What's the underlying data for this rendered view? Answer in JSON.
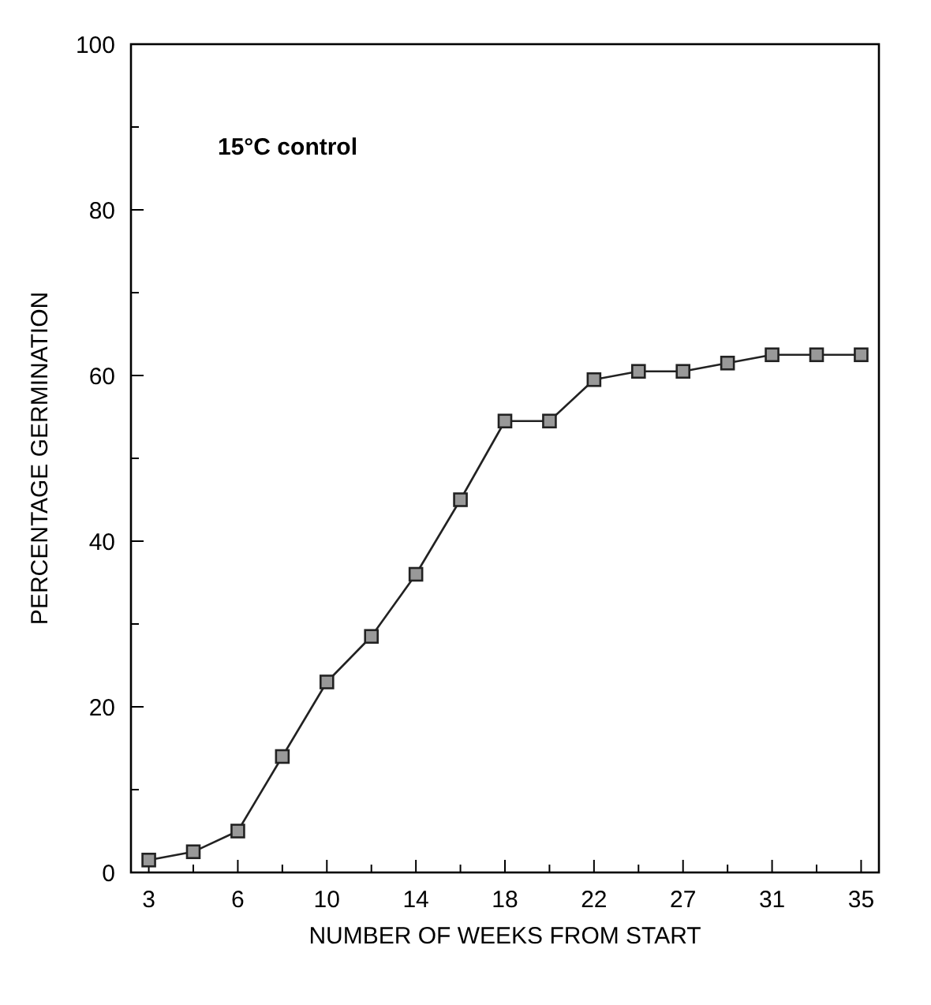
{
  "chart_data": {
    "type": "line",
    "annotations": [
      "15°C control"
    ],
    "xlabel": "NUMBER OF WEEKS FROM START",
    "ylabel": "PERCENTAGE GERMINATION",
    "categories": [
      "3",
      null,
      "6",
      null,
      "10",
      null,
      "14",
      null,
      "18",
      null,
      "22",
      null,
      "27",
      null,
      "31",
      null,
      "35"
    ],
    "series": [
      {
        "color": "#222222",
        "values": [
          1.5,
          2.5,
          5,
          14,
          23,
          28.5,
          36,
          45,
          54.5,
          54.5,
          59.5,
          60.5,
          60.5,
          61.5,
          62.5,
          62.5,
          62.5
        ]
      }
    ],
    "ylim": [
      0,
      100
    ],
    "yticks": [
      0,
      {
        "value": 10,
        "label": null
      },
      20,
      {
        "value": 30,
        "label": null
      },
      40,
      {
        "value": 50,
        "label": null
      },
      60,
      {
        "value": 70,
        "label": null
      },
      80,
      {
        "value": 90,
        "label": null
      },
      100
    ],
    "marker": "square",
    "line_style": "solid",
    "grid": false
  }
}
